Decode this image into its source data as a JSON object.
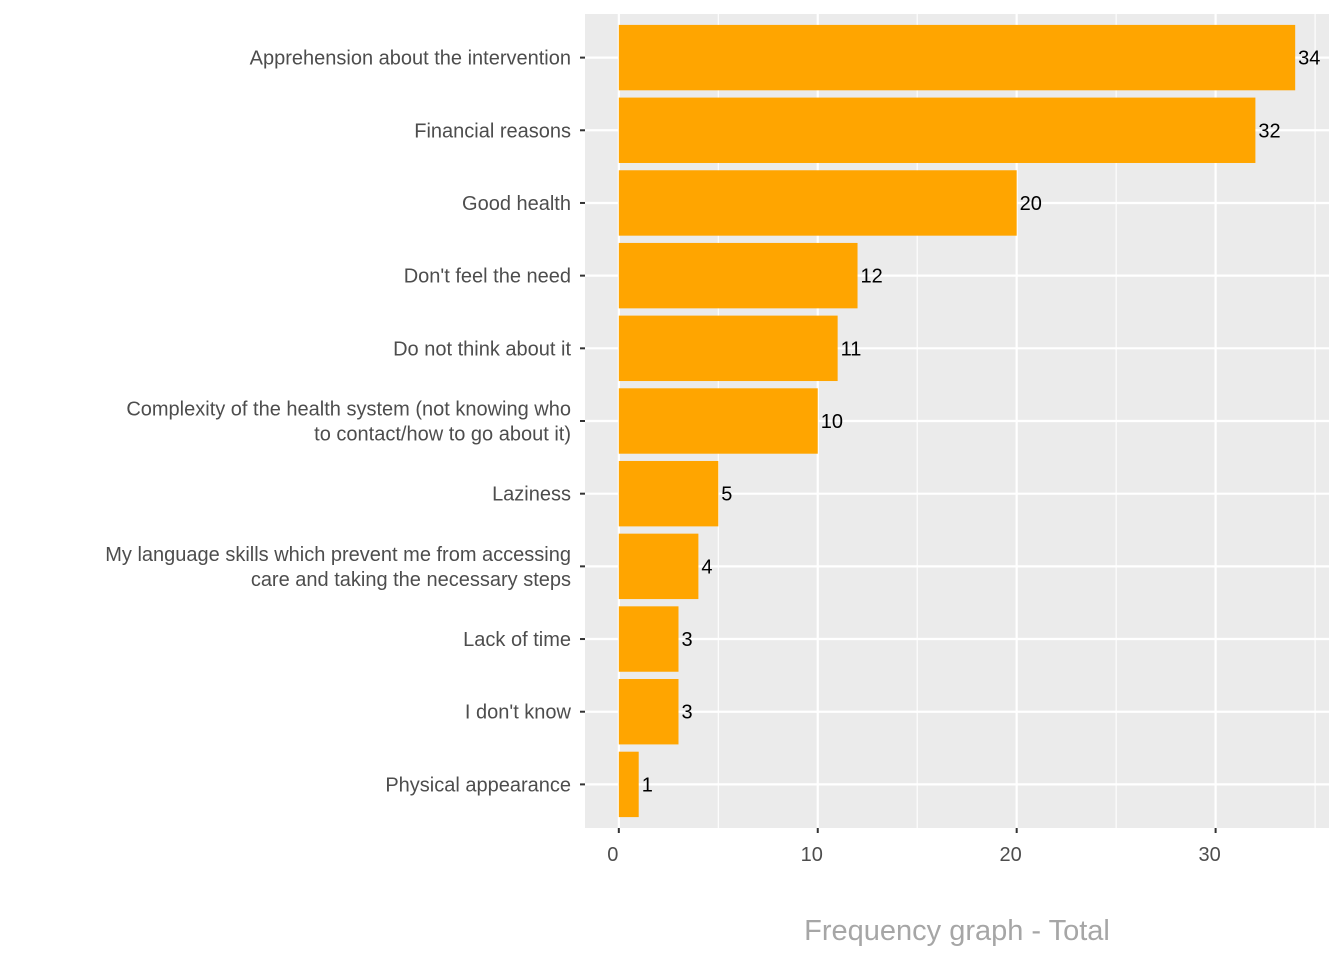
{
  "chart_data": {
    "type": "bar",
    "orientation": "horizontal",
    "title": "",
    "xlabel": "Frequency graph - Total",
    "ylabel": "",
    "categories": [
      [
        "Apprehension about the intervention"
      ],
      [
        "Financial reasons"
      ],
      [
        "Good health"
      ],
      [
        "Don't feel the need"
      ],
      [
        "Do not think about it"
      ],
      [
        "Complexity of the health system (not knowing who",
        "to contact/how to go about it)"
      ],
      [
        "Laziness"
      ],
      [
        "My language skills which prevent me from accessing",
        "care and taking the necessary steps"
      ],
      [
        "Lack of time"
      ],
      [
        "I don't know"
      ],
      [
        "Physical appearance"
      ]
    ],
    "values": [
      34,
      32,
      20,
      12,
      11,
      10,
      5,
      4,
      3,
      3,
      1
    ],
    "data_labels": [
      "34",
      "32",
      "20",
      "12",
      "11",
      "10",
      "5",
      "4",
      "3",
      "3",
      "1"
    ],
    "xlim": [
      -1.7,
      35.7
    ],
    "xticks": [
      0,
      10,
      20,
      30
    ],
    "xtick_labels": [
      "0",
      "10",
      "20",
      "30"
    ],
    "grid": true,
    "legend": "none",
    "colors": {
      "bar": "#FFA500",
      "panel": "#EBEBEB",
      "grid": "#FFFFFF",
      "axis_text": "#4D4D4D",
      "axis_title": "#A6A6A6",
      "data_label": "#000000"
    }
  }
}
